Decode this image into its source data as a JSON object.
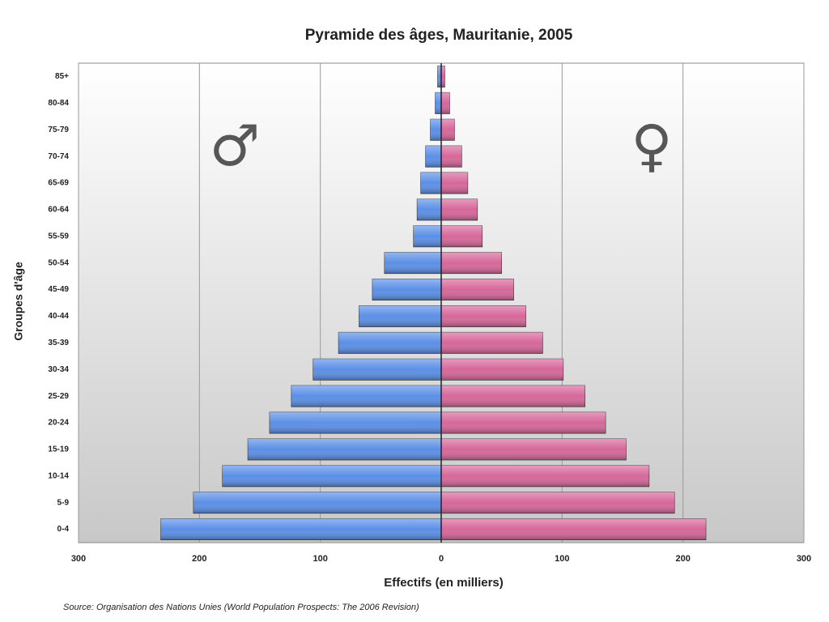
{
  "chart_data": {
    "type": "pyramid",
    "title": "Pyramide des âges, Mauritanie, 2005",
    "x_label": "Effectifs (en milliers)",
    "y_label": "Groupes d'âge",
    "source": "Source: Organisation des Nations Unies (World Population Prospects: The 2006 Revision)",
    "categories": [
      "0-4",
      "5-9",
      "10-14",
      "15-19",
      "20-24",
      "25-29",
      "30-34",
      "35-39",
      "40-44",
      "45-49",
      "50-54",
      "55-59",
      "60-64",
      "65-69",
      "70-74",
      "75-79",
      "80-84",
      "85+"
    ],
    "series": [
      {
        "name": "♂",
        "color": "#5b8fe6",
        "values": [
          -232,
          -205,
          -181,
          -160,
          -142,
          -124,
          -106,
          -85,
          -68,
          -57,
          -47,
          -23,
          -20,
          -17,
          -13,
          -9,
          -5,
          -3
        ]
      },
      {
        "name": "♀",
        "color": "#d6679a",
        "values": [
          219,
          193,
          172,
          153,
          136,
          119,
          101,
          84,
          70,
          60,
          50,
          34,
          30,
          22,
          17,
          11,
          7,
          3
        ]
      }
    ],
    "xlim": [
      -300,
      300
    ],
    "xticks": [
      {
        "value": -300,
        "label": "300"
      },
      {
        "value": -200,
        "label": "200"
      },
      {
        "value": -100,
        "label": "100"
      },
      0,
      100,
      200,
      300
    ],
    "grid": true
  }
}
